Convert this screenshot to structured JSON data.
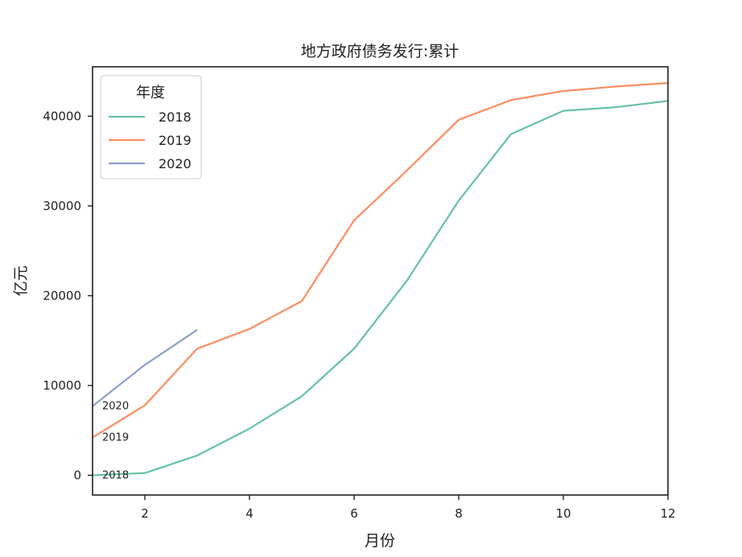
{
  "chart_data": {
    "type": "line",
    "title": "地方政府债务发行:累计",
    "xlabel": "月份",
    "ylabel": "亿元",
    "xlim": [
      1,
      12
    ],
    "ylim": [
      -2200,
      45500
    ],
    "x_ticks": [
      2,
      4,
      6,
      8,
      10,
      12
    ],
    "y_ticks": [
      0,
      10000,
      20000,
      30000,
      40000
    ],
    "grid": false,
    "legend": {
      "title": "年度",
      "position": "top-left"
    },
    "series": [
      {
        "name": "2018",
        "color": "#66c2a5",
        "x": [
          1,
          2,
          3,
          4,
          5,
          6,
          7,
          8,
          9,
          10,
          11,
          12
        ],
        "values": [
          0,
          250,
          2200,
          5200,
          8800,
          14100,
          21600,
          30600,
          38000,
          40600,
          41000,
          41700
        ],
        "end_label": "2018"
      },
      {
        "name": "2019",
        "color": "#fc8d62",
        "x": [
          1,
          2,
          3,
          4,
          5,
          6,
          7,
          8,
          9,
          10,
          11,
          12
        ],
        "values": [
          4200,
          7800,
          14100,
          16300,
          19400,
          28400,
          33900,
          39600,
          41800,
          42800,
          43300,
          43700
        ],
        "end_label": "2019"
      },
      {
        "name": "2020",
        "color": "#8da0cb",
        "x": [
          1,
          2,
          3
        ],
        "values": [
          7700,
          12300,
          16200
        ],
        "end_label": "2020"
      }
    ]
  }
}
